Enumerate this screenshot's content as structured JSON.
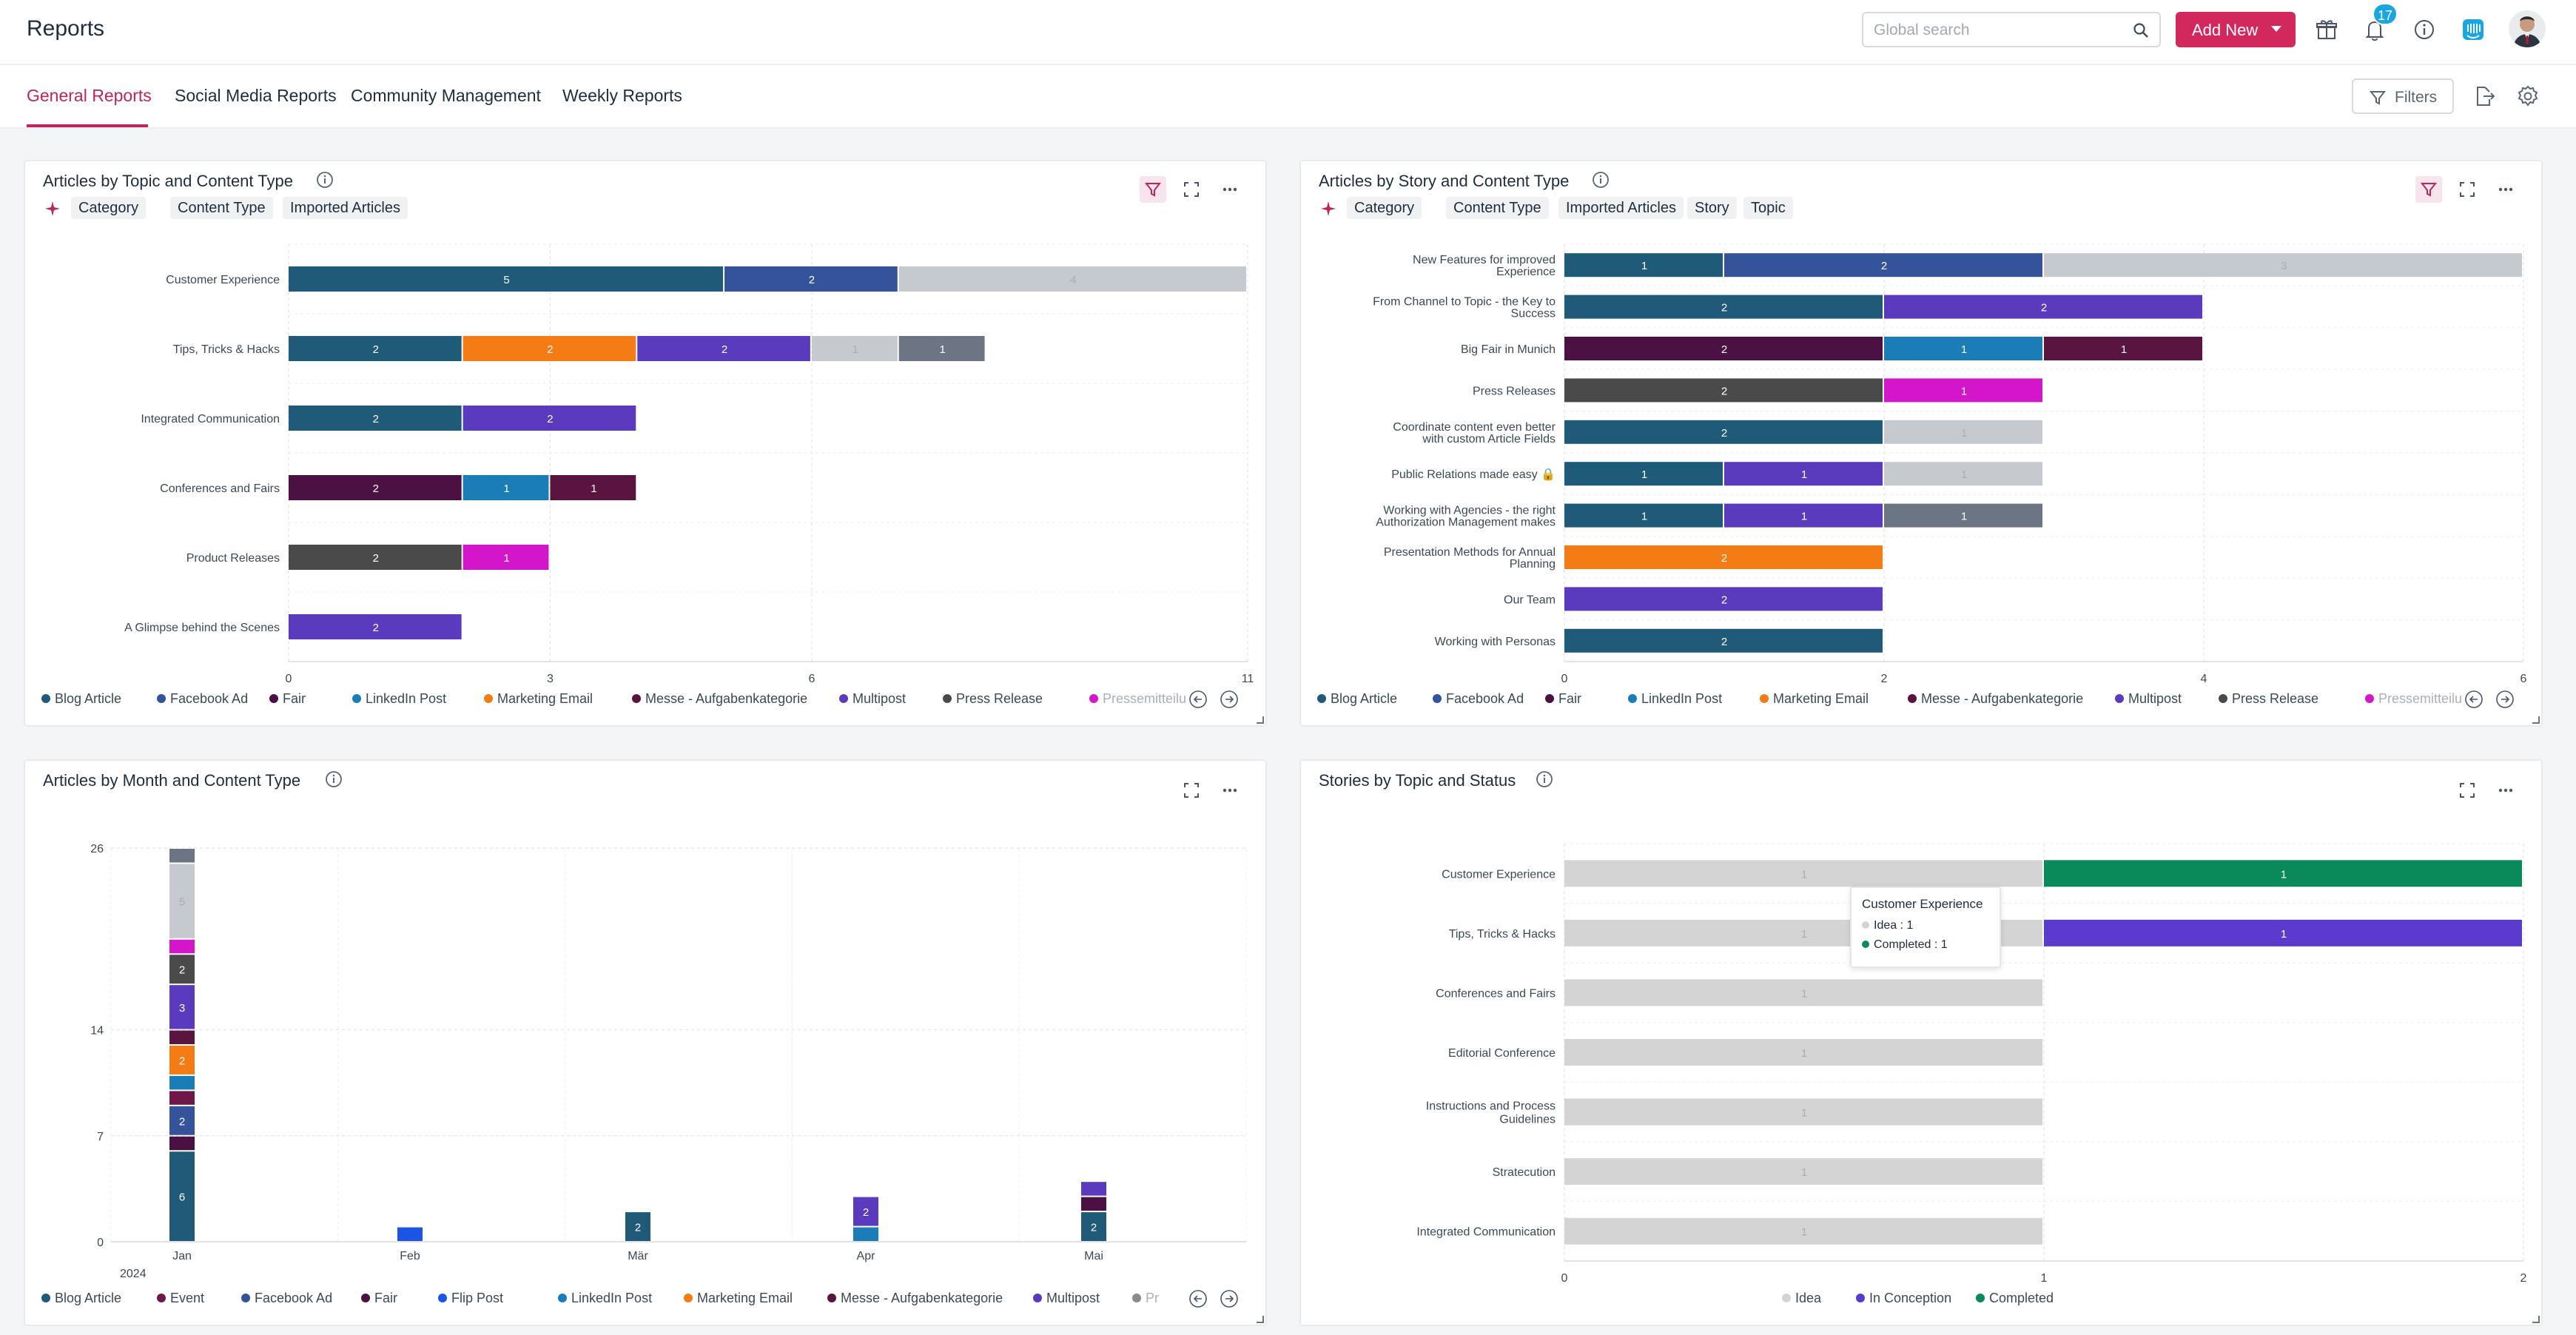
{
  "header": {
    "title": "Reports",
    "search_placeholder": "Global search",
    "add_new_label": "Add New",
    "notification_count": "17"
  },
  "tabs": [
    {
      "label": "General Reports",
      "active": true
    },
    {
      "label": "Social Media Reports",
      "active": false
    },
    {
      "label": "Community Management",
      "active": false
    },
    {
      "label": "Weekly Reports",
      "active": false
    }
  ],
  "toolbar": {
    "filters_label": "Filters"
  },
  "colors": {
    "accent": "#c0245a",
    "Blog Article": "#1f5a78",
    "Facebook Ad": "#35539b",
    "Fair": "#4b1142",
    "LinkedIn Post": "#1a7db8",
    "Marketing Email": "#f57c14",
    "Messe - Aufgabenkategorie": "#5a1440",
    "Multipost": "#5a3bbd",
    "Press Release": "#4a4a4a",
    "Pressemitteilung": "#d316c9",
    "Imported": "#c6c9ce",
    "Other": "#6c7584",
    "Event": "#6d1848",
    "Flip Post": "#1c55e6",
    "Idea": "#d4d4d4",
    "In Conception": "#5a3bcd",
    "Completed": "#0a8a5a"
  },
  "panels": {
    "topic": {
      "title": "Articles by Topic and Content Type",
      "chips": [
        "Category",
        "Content Type",
        "Imported Articles"
      ],
      "legend": [
        "Blog Article",
        "Facebook Ad",
        "Fair",
        "LinkedIn Post",
        "Marketing Email",
        "Messe - Aufgabenkategorie",
        "Multipost",
        "Press Release",
        "Pressemitteilu"
      ]
    },
    "story": {
      "title": "Articles by Story and Content Type",
      "chips": [
        "Category",
        "Content Type",
        "Imported Articles",
        "Story",
        "Topic"
      ],
      "legend": [
        "Blog Article",
        "Facebook Ad",
        "Fair",
        "LinkedIn Post",
        "Marketing Email",
        "Messe - Aufgabenkategorie",
        "Multipost",
        "Press Release",
        "Pressemitteilu"
      ]
    },
    "month": {
      "title": "Articles by Month and Content Type",
      "legend": [
        "Blog Article",
        "Event",
        "Facebook Ad",
        "Fair",
        "Flip Post",
        "LinkedIn Post",
        "Marketing Email",
        "Messe - Aufgabenkategorie",
        "Multipost",
        "Press"
      ]
    },
    "status": {
      "title": "Stories by Topic and Status",
      "legend": [
        "Idea",
        "In Conception",
        "Completed"
      ],
      "tooltip": {
        "title": "Customer Experience",
        "rows": [
          "Idea : 1",
          "Completed : 1"
        ]
      }
    }
  },
  "chart_data": [
    {
      "type": "bar",
      "orientation": "horizontal",
      "stacked": true,
      "title": "Articles by Topic and Content Type",
      "categories": [
        "Customer Experience",
        "Tips, Tricks & Hacks",
        "Integrated Communication",
        "Conferences and Fairs",
        "Product Releases",
        "A Glimpse behind the Scenes"
      ],
      "segments": [
        [
          {
            "type": "Blog Article",
            "value": 5
          },
          {
            "type": "Facebook Ad",
            "value": 2
          },
          {
            "type": "Imported",
            "value": 4
          }
        ],
        [
          {
            "type": "Blog Article",
            "value": 2
          },
          {
            "type": "Marketing Email",
            "value": 2
          },
          {
            "type": "Multipost",
            "value": 2
          },
          {
            "type": "Imported",
            "value": 1
          },
          {
            "type": "Other",
            "value": 1
          }
        ],
        [
          {
            "type": "Blog Article",
            "value": 2
          },
          {
            "type": "Multipost",
            "value": 2
          }
        ],
        [
          {
            "type": "Fair",
            "value": 2
          },
          {
            "type": "LinkedIn Post",
            "value": 1
          },
          {
            "type": "Messe - Aufgabenkategorie",
            "value": 1
          }
        ],
        [
          {
            "type": "Press Release",
            "value": 2
          },
          {
            "type": "Pressemitteilung",
            "value": 1
          }
        ],
        [
          {
            "type": "Multipost",
            "value": 2
          }
        ]
      ],
      "xticks": [
        0,
        3,
        6,
        11
      ],
      "xlim": [
        0,
        11
      ],
      "grid": true
    },
    {
      "type": "bar",
      "orientation": "horizontal",
      "stacked": true,
      "title": "Articles by Story and Content Type",
      "categories": [
        "New Features for improved Experience",
        "From Channel to Topic - the Key to Success",
        "Big Fair in Munich",
        "Press Releases",
        "Coordinate content even better with custom Article Fields",
        "Public Relations made easy 🔒",
        "Working with Agencies - the right Authorization Management makes al...",
        "Presentation Methods for Annual Planning",
        "Our Team",
        "Working with Personas"
      ],
      "segments": [
        [
          {
            "type": "Blog Article",
            "value": 1
          },
          {
            "type": "Facebook Ad",
            "value": 2
          },
          {
            "type": "Imported",
            "value": 3
          }
        ],
        [
          {
            "type": "Blog Article",
            "value": 2
          },
          {
            "type": "Multipost",
            "value": 2
          }
        ],
        [
          {
            "type": "Fair",
            "value": 2
          },
          {
            "type": "LinkedIn Post",
            "value": 1
          },
          {
            "type": "Messe - Aufgabenkategorie",
            "value": 1
          }
        ],
        [
          {
            "type": "Press Release",
            "value": 2
          },
          {
            "type": "Pressemitteilung",
            "value": 1
          }
        ],
        [
          {
            "type": "Blog Article",
            "value": 2
          },
          {
            "type": "Imported",
            "value": 1
          }
        ],
        [
          {
            "type": "Blog Article",
            "value": 1
          },
          {
            "type": "Multipost",
            "value": 1
          },
          {
            "type": "Imported",
            "value": 1
          }
        ],
        [
          {
            "type": "Blog Article",
            "value": 1
          },
          {
            "type": "Multipost",
            "value": 1
          },
          {
            "type": "Other",
            "value": 1
          }
        ],
        [
          {
            "type": "Marketing Email",
            "value": 2
          }
        ],
        [
          {
            "type": "Multipost",
            "value": 2
          }
        ],
        [
          {
            "type": "Blog Article",
            "value": 2
          }
        ]
      ],
      "xticks": [
        0,
        2,
        4,
        6
      ],
      "xlim": [
        0,
        6
      ],
      "grid": true
    },
    {
      "type": "bar",
      "orientation": "vertical",
      "stacked": true,
      "title": "Articles by Month and Content Type",
      "categories": [
        "Jan",
        "Feb",
        "Mär",
        "Apr",
        "Mai"
      ],
      "year_label": "2024",
      "segments": [
        [
          {
            "type": "Blog Article",
            "value": 6
          },
          {
            "type": "Fair",
            "value": 1
          },
          {
            "type": "Facebook Ad",
            "value": 2
          },
          {
            "type": "Event",
            "value": 1
          },
          {
            "type": "LinkedIn Post",
            "value": 1
          },
          {
            "type": "Marketing Email",
            "value": 2
          },
          {
            "type": "Messe - Aufgabenkategorie",
            "value": 1
          },
          {
            "type": "Multipost",
            "value": 3
          },
          {
            "type": "Press Release",
            "value": 2
          },
          {
            "type": "Pressemitteilung",
            "value": 1
          },
          {
            "type": "Imported",
            "value": 5
          },
          {
            "type": "Other",
            "value": 1
          }
        ],
        [
          {
            "type": "Flip Post",
            "value": 1
          }
        ],
        [
          {
            "type": "Blog Article",
            "value": 2
          }
        ],
        [
          {
            "type": "LinkedIn Post",
            "value": 1
          },
          {
            "type": "Multipost",
            "value": 2
          }
        ],
        [
          {
            "type": "Blog Article",
            "value": 2
          },
          {
            "type": "Fair",
            "value": 1
          },
          {
            "type": "Multipost",
            "value": 1
          }
        ]
      ],
      "yticks": [
        0,
        7,
        14,
        26
      ],
      "ylim": [
        0,
        26
      ],
      "grid": true
    },
    {
      "type": "bar",
      "orientation": "horizontal",
      "stacked": true,
      "title": "Stories by Topic and Status",
      "categories": [
        "Customer Experience",
        "Tips, Tricks & Hacks",
        "Conferences and Fairs",
        "Editorial Conference",
        "Instructions and Process Guidelines",
        "Stratecution",
        "Integrated Communication"
      ],
      "segments": [
        [
          {
            "type": "Idea",
            "value": 1
          },
          {
            "type": "Completed",
            "value": 1
          }
        ],
        [
          {
            "type": "Idea",
            "value": 1
          },
          {
            "type": "In Conception",
            "value": 1
          }
        ],
        [
          {
            "type": "Idea",
            "value": 1
          }
        ],
        [
          {
            "type": "Idea",
            "value": 1
          }
        ],
        [
          {
            "type": "Idea",
            "value": 1
          }
        ],
        [
          {
            "type": "Idea",
            "value": 1
          }
        ],
        [
          {
            "type": "Idea",
            "value": 1
          }
        ]
      ],
      "xticks": [
        0,
        1,
        2
      ],
      "xlim": [
        0,
        2
      ],
      "grid": true
    }
  ]
}
